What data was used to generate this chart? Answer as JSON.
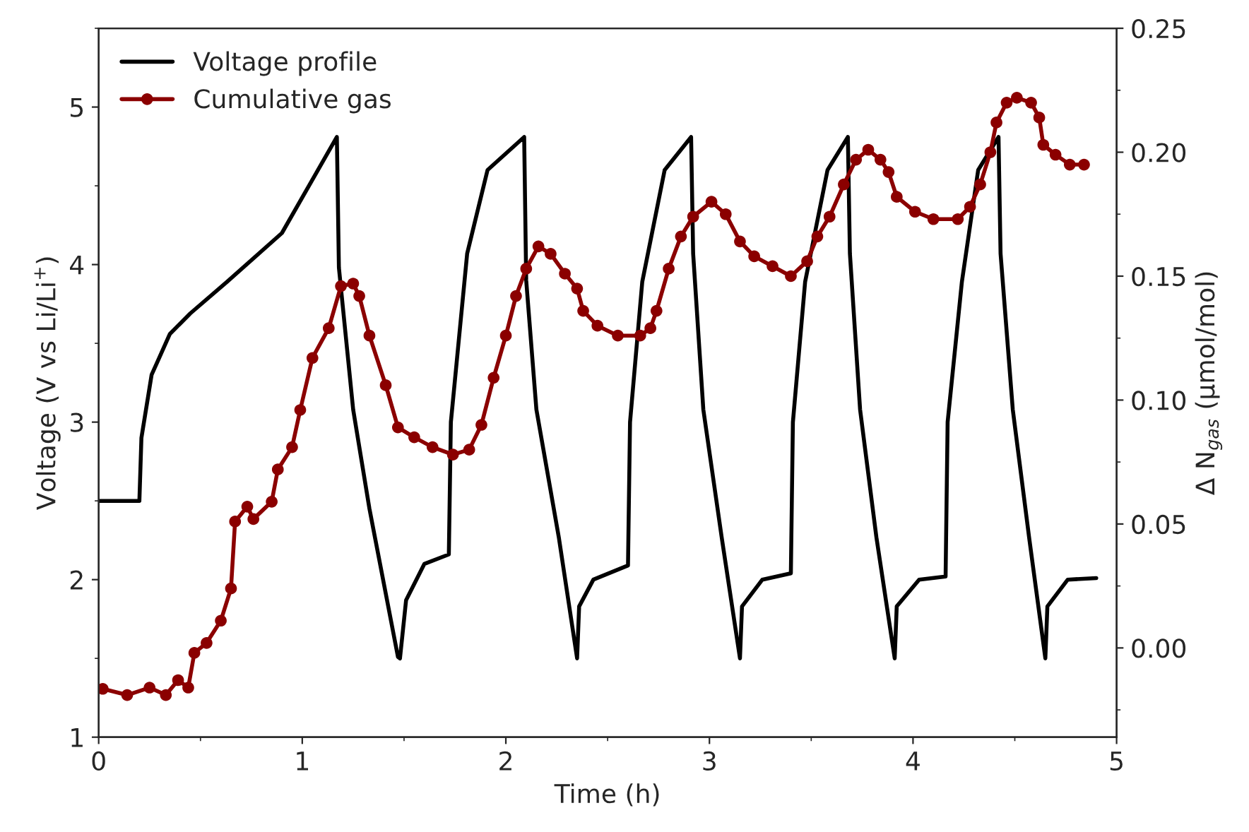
{
  "chart_data": {
    "type": "line",
    "xlabel": "Time (h)",
    "ylabel": "Voltage (V vs Li/Li$^{+}$)",
    "y2label": "Δ N$_{gas}$ (μmol/mol)",
    "xlim": [
      0,
      5
    ],
    "xticks": [
      0,
      1,
      2,
      3,
      4,
      5
    ],
    "ylim": [
      1,
      5.5
    ],
    "yticks": [
      1,
      2,
      3,
      4,
      5
    ],
    "y2lim": [
      -0.036,
      0.25
    ],
    "y2ticks": [
      {
        "value": 0,
        "label": "0.00"
      },
      {
        "value": 0.05,
        "label": "0.05"
      },
      {
        "value": 0.1,
        "label": "0.10"
      },
      {
        "value": 0.15,
        "label": "0.15"
      },
      {
        "value": 0.2,
        "label": "0.20"
      },
      {
        "value": 0.25,
        "label": "0.25"
      }
    ],
    "legend": "top left",
    "grid": false,
    "series": [
      {
        "name": "Voltage profile",
        "color": "#000000",
        "marker": "none",
        "x": [
          0,
          0.2,
          0.21,
          0.26,
          0.35,
          0.45,
          0.63,
          0.9,
          1.17,
          1.18,
          1.25,
          1.33,
          1.47,
          1.48,
          1.51,
          1.6,
          1.72,
          1.73,
          1.81,
          1.91,
          2.09,
          2.1,
          2.15,
          2.26,
          2.35,
          2.36,
          2.43,
          2.6,
          2.61,
          2.67,
          2.78,
          2.91,
          2.92,
          2.97,
          3.06,
          3.15,
          3.16,
          3.26,
          3.4,
          3.41,
          3.47,
          3.58,
          3.68,
          3.69,
          3.74,
          3.82,
          3.91,
          3.92,
          4.03,
          4.16,
          4.17,
          4.24,
          4.32,
          4.42,
          4.43,
          4.49,
          4.57,
          4.65,
          4.66,
          4.76,
          4.9
        ],
        "values": [
          2.5,
          2.5,
          2.9,
          3.3,
          3.56,
          3.69,
          3.89,
          4.2,
          4.81,
          3.98,
          3.08,
          2.45,
          1.51,
          1.5,
          1.87,
          2.1,
          2.16,
          3.0,
          4.07,
          4.6,
          4.81,
          3.9,
          3.08,
          2.27,
          1.5,
          1.83,
          2.0,
          2.09,
          3.0,
          3.89,
          4.6,
          4.81,
          4.07,
          3.08,
          2.27,
          1.5,
          1.83,
          2.0,
          2.04,
          3.0,
          3.89,
          4.6,
          4.81,
          4.07,
          3.08,
          2.27,
          1.5,
          1.83,
          2.0,
          2.02,
          3.0,
          3.89,
          4.6,
          4.81,
          4.07,
          3.08,
          2.27,
          1.5,
          1.83,
          2.0,
          2.01
        ]
      },
      {
        "name": "Cumulative gas",
        "color": "#8b0000",
        "marker": "circle",
        "axis": "y2",
        "x": [
          0.02,
          0.14,
          0.25,
          0.33,
          0.39,
          0.44,
          0.47,
          0.53,
          0.6,
          0.65,
          0.67,
          0.73,
          0.76,
          0.85,
          0.88,
          0.95,
          0.99,
          1.05,
          1.13,
          1.19,
          1.25,
          1.28,
          1.33,
          1.41,
          1.47,
          1.55,
          1.64,
          1.74,
          1.82,
          1.88,
          1.94,
          2.0,
          2.05,
          2.1,
          2.16,
          2.22,
          2.29,
          2.35,
          2.38,
          2.45,
          2.55,
          2.66,
          2.71,
          2.74,
          2.8,
          2.86,
          2.92,
          3.01,
          3.08,
          3.15,
          3.22,
          3.31,
          3.4,
          3.48,
          3.53,
          3.59,
          3.66,
          3.72,
          3.78,
          3.84,
          3.88,
          3.92,
          4.01,
          4.1,
          4.22,
          4.28,
          4.33,
          4.38,
          4.41,
          4.46,
          4.51,
          4.58,
          4.62,
          4.64,
          4.7,
          4.77,
          4.84
        ],
        "values": [
          -0.0165,
          -0.019,
          -0.016,
          -0.019,
          -0.013,
          -0.016,
          -0.002,
          0.002,
          0.011,
          0.024,
          0.051,
          0.057,
          0.052,
          0.059,
          0.072,
          0.081,
          0.096,
          0.117,
          0.129,
          0.146,
          0.147,
          0.142,
          0.126,
          0.106,
          0.089,
          0.085,
          0.081,
          0.078,
          0.08,
          0.09,
          0.109,
          0.126,
          0.142,
          0.153,
          0.162,
          0.159,
          0.151,
          0.145,
          0.136,
          0.13,
          0.126,
          0.126,
          0.129,
          0.136,
          0.153,
          0.166,
          0.174,
          0.18,
          0.175,
          0.164,
          0.158,
          0.154,
          0.15,
          0.156,
          0.166,
          0.174,
          0.187,
          0.197,
          0.201,
          0.197,
          0.192,
          0.182,
          0.176,
          0.173,
          0.173,
          0.178,
          0.187,
          0.2,
          0.212,
          0.22,
          0.222,
          0.22,
          0.214,
          0.203,
          0.199,
          0.195,
          0.195
        ]
      }
    ]
  }
}
